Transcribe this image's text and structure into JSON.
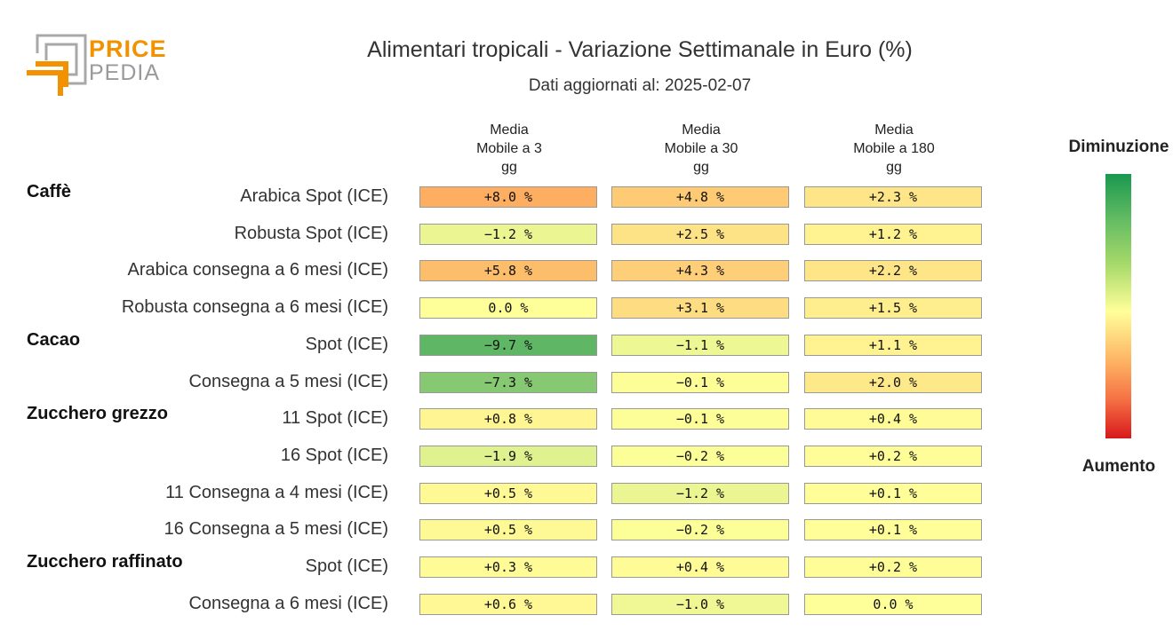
{
  "logo": {
    "word1": "PRICE",
    "word2": "PEDIA"
  },
  "title": "Alimentari tropicali - Variazione Settimanale in Euro (%)",
  "subtitle": "Dati aggiornati al: 2025-02-07",
  "legend": {
    "top": "Diminuzione",
    "bottom": "Aumento"
  },
  "chart_data": {
    "type": "table",
    "columns": [
      [
        "Media",
        "Mobile a 3",
        "gg"
      ],
      [
        "Media",
        "Mobile a 30",
        "gg"
      ],
      [
        "Media",
        "Mobile a 180",
        "gg"
      ]
    ],
    "unit": "%",
    "colorscale": {
      "low": "#1a9850",
      "mid": "#ffff99",
      "high": "#d7191c"
    },
    "groups": [
      {
        "name": "Caffè",
        "rows": [
          {
            "label": "Arabica Spot (ICE)",
            "values": [
              8.0,
              4.8,
              2.3
            ]
          },
          {
            "label": "Robusta Spot (ICE)",
            "values": [
              -1.2,
              2.5,
              1.2
            ]
          },
          {
            "label": "Arabica consegna a 6 mesi (ICE)",
            "values": [
              5.8,
              4.3,
              2.2
            ]
          },
          {
            "label": "Robusta consegna a 6 mesi (ICE)",
            "values": [
              0.0,
              3.1,
              1.5
            ]
          }
        ]
      },
      {
        "name": "Cacao",
        "rows": [
          {
            "label": "Spot (ICE)",
            "values": [
              -9.7,
              -1.1,
              1.1
            ]
          },
          {
            "label": "Consegna a 5 mesi (ICE)",
            "values": [
              -7.3,
              -0.1,
              2.0
            ]
          }
        ]
      },
      {
        "name": "Zucchero grezzo",
        "rows": [
          {
            "label": "11 Spot (ICE)",
            "values": [
              0.8,
              -0.1,
              0.4
            ]
          },
          {
            "label": "16 Spot (ICE)",
            "values": [
              -1.9,
              -0.2,
              0.2
            ]
          },
          {
            "label": "11 Consegna a 4 mesi (ICE)",
            "values": [
              0.5,
              -1.2,
              0.1
            ]
          },
          {
            "label": "16 Consegna a 5 mesi (ICE)",
            "values": [
              0.5,
              -0.2,
              0.1
            ]
          }
        ]
      },
      {
        "name": "Zucchero raffinato",
        "rows": [
          {
            "label": "Spot (ICE)",
            "values": [
              0.3,
              0.4,
              0.2
            ]
          },
          {
            "label": "Consegna a 6 mesi (ICE)",
            "values": [
              0.6,
              -1.0,
              0.0
            ]
          }
        ]
      }
    ]
  }
}
